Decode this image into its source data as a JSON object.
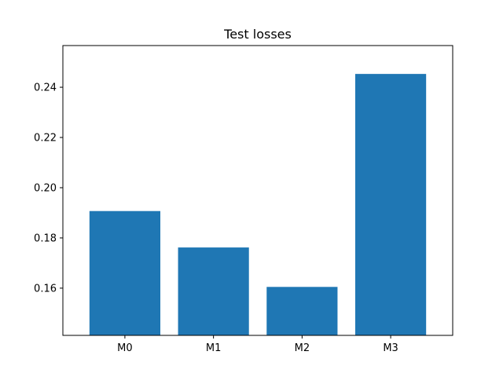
{
  "chart_data": {
    "type": "bar",
    "title": "Test losses",
    "xlabel": "",
    "ylabel": "",
    "categories": [
      "M0",
      "M1",
      "M2",
      "M3"
    ],
    "values": [
      0.1907,
      0.1762,
      0.1605,
      0.2453
    ],
    "ylim": [
      0.1412,
      0.2566
    ],
    "yticks": [
      0.16,
      0.18,
      0.2,
      0.22,
      0.24
    ],
    "ytick_labels": [
      "0.16",
      "0.18",
      "0.20",
      "0.22",
      "0.24"
    ],
    "bar_color": "#1f77b4",
    "grid": false,
    "legend": "none"
  }
}
